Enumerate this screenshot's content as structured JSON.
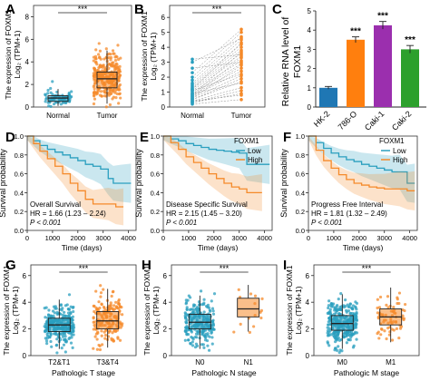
{
  "colors": {
    "normal": "#2a9fbf",
    "tumor": "#f58a2a",
    "bar_hk2": "#1f77b4",
    "bar_786o": "#ff7f0e",
    "bar_caki1": "#9b2fae",
    "bar_caki2": "#2ca02c",
    "low": "#2a9fbf",
    "high": "#f58a2a"
  },
  "chart_data": [
    {
      "panel": "A",
      "type": "boxplot",
      "ylabel_line1": "The expression of FOXM1",
      "ylabel_line2": "Log₂ (TPM+1)",
      "categories": [
        "Normal",
        "Tumor"
      ],
      "yticks": [
        "0",
        "2",
        "4",
        "6",
        "8"
      ],
      "ylim": [
        0,
        9
      ],
      "significance": "***",
      "boxes": [
        {
          "name": "Normal",
          "min": 0.1,
          "q1": 0.5,
          "median": 0.8,
          "q3": 1.0,
          "max": 1.6,
          "n": 70
        },
        {
          "name": "Tumor",
          "min": 0.3,
          "q1": 1.7,
          "median": 2.5,
          "q3": 3.1,
          "max": 5.0,
          "n": 300
        }
      ]
    },
    {
      "panel": "B",
      "type": "paired",
      "ylabel_line1": "The expression of FOXM1",
      "ylabel_line2": "Log₂ (TPM+1)",
      "categories": [
        "Normal",
        "Tumor"
      ],
      "yticks": [
        "0",
        "1",
        "2",
        "3",
        "4",
        "5",
        "6"
      ],
      "ylim": [
        0,
        6.8
      ],
      "significance": "***",
      "pairs": [
        [
          0.2,
          0.5
        ],
        [
          0.3,
          0.9
        ],
        [
          0.4,
          1.3
        ],
        [
          0.5,
          1.7
        ],
        [
          0.6,
          2.1
        ],
        [
          0.7,
          2.4
        ],
        [
          0.8,
          2.6
        ],
        [
          0.9,
          2.9
        ],
        [
          1.0,
          3.1
        ],
        [
          1.1,
          3.4
        ],
        [
          1.2,
          3.6
        ],
        [
          1.3,
          3.8
        ],
        [
          1.4,
          4.0
        ],
        [
          1.5,
          4.2
        ],
        [
          1.6,
          4.5
        ],
        [
          1.8,
          4.7
        ],
        [
          2.0,
          5.0
        ],
        [
          2.3,
          5.2
        ],
        [
          2.6,
          3.0
        ],
        [
          3.0,
          4.6
        ],
        [
          3.2,
          3.5
        ],
        [
          0.3,
          1.1
        ],
        [
          0.5,
          1.9
        ],
        [
          0.6,
          2.8
        ],
        [
          0.7,
          3.3
        ],
        [
          0.9,
          1.6
        ],
        [
          1.1,
          2.2
        ],
        [
          1.2,
          4.3
        ],
        [
          0.4,
          0.8
        ],
        [
          0.8,
          3.7
        ]
      ]
    },
    {
      "panel": "C",
      "type": "bar",
      "ylabel_line1": "Relative RNA level of",
      "ylabel_line2": "FOXM1",
      "categories": [
        "HK-2",
        "786-O",
        "Caki-1",
        "Caki-2"
      ],
      "values": [
        1.0,
        3.5,
        4.25,
        3.0
      ],
      "errors": [
        0.07,
        0.15,
        0.2,
        0.2
      ],
      "yticks": [
        "0",
        "1",
        "2",
        "3",
        "4",
        "5"
      ],
      "ylim": [
        0,
        5
      ],
      "annotations": [
        "",
        "***",
        "***",
        "***"
      ]
    },
    {
      "panel": "D",
      "type": "survival",
      "xlabel": "Time (days)",
      "ylabel": "Survival probability",
      "xticks": [
        "0",
        "1000",
        "2000",
        "3000",
        "4000"
      ],
      "yticks": [
        "0.0",
        "0.2",
        "0.4",
        "0.6",
        "0.8",
        "1.0"
      ],
      "xlim": [
        0,
        4300
      ],
      "title_text": "Overall Survival",
      "hr_text": "HR = 1.66 (1.23 – 2.24)",
      "p_text": "P < 0.001",
      "low": {
        "t": [
          0,
          250,
          500,
          800,
          1100,
          1400,
          1700,
          2000,
          2300,
          2600,
          2900,
          3200,
          3400,
          3700,
          4100
        ],
        "s": [
          1.0,
          0.95,
          0.9,
          0.86,
          0.83,
          0.8,
          0.77,
          0.74,
          0.7,
          0.68,
          0.65,
          0.55,
          0.5,
          0.5,
          0.5
        ]
      },
      "high": {
        "t": [
          0,
          250,
          500,
          800,
          1100,
          1400,
          1700,
          2000,
          2300,
          2600,
          2900,
          3200,
          3500,
          3800
        ],
        "s": [
          1.0,
          0.92,
          0.84,
          0.76,
          0.68,
          0.6,
          0.5,
          0.42,
          0.33,
          0.28,
          0.28,
          0.28,
          0.25,
          0.25
        ]
      }
    },
    {
      "panel": "E",
      "type": "survival",
      "xlabel": "Time (days)",
      "ylabel": "Survival probability",
      "xticks": [
        "0",
        "1000",
        "2000",
        "3000",
        "4000"
      ],
      "yticks": [
        "0.0",
        "0.2",
        "0.4",
        "0.6",
        "0.8",
        "1.0"
      ],
      "xlim": [
        0,
        4300
      ],
      "title_text": "Disease Specific Survival",
      "hr_text": "HR = 2.15 (1.45 – 3.20)",
      "p_text": "P < 0.001",
      "low": {
        "t": [
          0,
          300,
          600,
          900,
          1200,
          1500,
          1800,
          2100,
          2400,
          2700,
          3000,
          3300,
          3600,
          3900,
          4200
        ],
        "s": [
          1.0,
          0.97,
          0.95,
          0.92,
          0.9,
          0.88,
          0.86,
          0.85,
          0.84,
          0.83,
          0.82,
          0.7,
          0.7,
          0.7,
          0.7
        ]
      },
      "high": {
        "t": [
          0,
          300,
          600,
          900,
          1200,
          1500,
          1800,
          2100,
          2400,
          2700,
          3000,
          3300,
          3600,
          3900
        ],
        "s": [
          1.0,
          0.93,
          0.86,
          0.78,
          0.72,
          0.66,
          0.6,
          0.55,
          0.5,
          0.46,
          0.44,
          0.4,
          0.4,
          0.4
        ]
      }
    },
    {
      "panel": "F",
      "type": "survival",
      "xlabel": "Time (days)",
      "ylabel": "Survival probability",
      "xticks": [
        "0",
        "1000",
        "2000",
        "3000",
        "4000"
      ],
      "yticks": [
        "0.0",
        "0.2",
        "0.4",
        "0.6",
        "0.8",
        "1.0"
      ],
      "xlim": [
        0,
        4300
      ],
      "title_text": "Progress Free Interval",
      "hr_text": "HR = 1.81 (1.32 – 2.49)",
      "p_text": "P < 0.001",
      "low": {
        "t": [
          0,
          300,
          600,
          900,
          1200,
          1500,
          1800,
          2100,
          2400,
          2700,
          3000,
          3300,
          3600,
          3900,
          4200
        ],
        "s": [
          1.0,
          0.93,
          0.87,
          0.82,
          0.78,
          0.75,
          0.73,
          0.7,
          0.68,
          0.66,
          0.64,
          0.62,
          0.62,
          0.5,
          0.5
        ]
      },
      "high": {
        "t": [
          0,
          300,
          600,
          900,
          1200,
          1500,
          1800,
          2100,
          2400,
          2700,
          3000,
          3300,
          3600,
          3900,
          4200
        ],
        "s": [
          1.0,
          0.85,
          0.74,
          0.66,
          0.59,
          0.54,
          0.5,
          0.48,
          0.46,
          0.45,
          0.44,
          0.44,
          0.44,
          0.42,
          0.42
        ]
      }
    },
    {
      "panel": "G",
      "type": "boxplot",
      "xlabel": "Pathologic T stage",
      "ylabel_line1": "The expression of FOXM1",
      "ylabel_line2": "Log₂ (TPM+1)",
      "categories": [
        "T2&T1",
        "T3&T4"
      ],
      "yticks": [
        "0",
        "2",
        "4",
        "6"
      ],
      "ylim": [
        0,
        6.8
      ],
      "significance": "***",
      "boxes": [
        {
          "name": "T2&T1",
          "min": 0.5,
          "q1": 1.8,
          "median": 2.3,
          "q3": 2.8,
          "max": 4.2,
          "n": 260
        },
        {
          "name": "T3&T4",
          "min": 0.6,
          "q1": 2.0,
          "median": 2.6,
          "q3": 3.3,
          "max": 5.0,
          "n": 180
        }
      ]
    },
    {
      "panel": "H",
      "type": "boxplot",
      "xlabel": "Pathologic N stage",
      "ylabel_line1": "The expression of FOXM1",
      "ylabel_line2": "Log₂ (TPM+1)",
      "categories": [
        "N0",
        "N1"
      ],
      "yticks": [
        "0",
        "2",
        "4",
        "6"
      ],
      "ylim": [
        0,
        6.8
      ],
      "significance": "***",
      "boxes": [
        {
          "name": "N0",
          "min": 0.5,
          "q1": 2.0,
          "median": 2.5,
          "q3": 3.1,
          "max": 4.5,
          "n": 240
        },
        {
          "name": "N1",
          "min": 1.8,
          "q1": 2.9,
          "median": 3.5,
          "q3": 4.3,
          "max": 5.3,
          "n": 15
        }
      ]
    },
    {
      "panel": "I",
      "type": "boxplot",
      "xlabel": "Pathologic M stage",
      "ylabel_line1": "The expression of FOXM1",
      "ylabel_line2": "Log₂ (TPM+1)",
      "categories": [
        "M0",
        "M1"
      ],
      "yticks": [
        "0",
        "2",
        "4",
        "6"
      ],
      "ylim": [
        0,
        6.8
      ],
      "significance": "***",
      "boxes": [
        {
          "name": "M0",
          "min": 0.5,
          "q1": 1.9,
          "median": 2.4,
          "q3": 3.0,
          "max": 4.6,
          "n": 300
        },
        {
          "name": "M1",
          "min": 1.0,
          "q1": 2.3,
          "median": 2.9,
          "q3": 3.5,
          "max": 5.1,
          "n": 70
        }
      ]
    }
  ],
  "legend": {
    "title": "FOXM1",
    "low": "Low",
    "high": "High"
  }
}
